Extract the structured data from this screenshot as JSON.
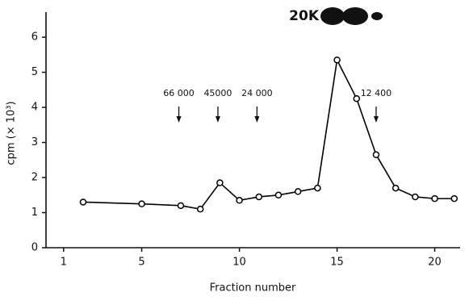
{
  "chart_data": {
    "type": "line",
    "gel_label": "20K",
    "x_label": "Fraction number",
    "y_label": "cpm (× 10³)",
    "x": [
      2,
      5,
      7,
      8,
      9,
      10,
      11,
      12,
      13,
      14,
      15,
      16,
      17,
      18,
      19,
      20,
      21
    ],
    "values": [
      1.3,
      1.25,
      1.2,
      1.1,
      1.85,
      1.35,
      1.45,
      1.5,
      1.6,
      1.7,
      5.35,
      4.25,
      2.65,
      1.7,
      1.45,
      1.4,
      1.4
    ],
    "color": "#000000",
    "xlim": [
      0.1,
      21.3
    ],
    "xticks": [
      1,
      5,
      10,
      15,
      20
    ],
    "ylim": [
      0,
      6.6
    ],
    "yticks": [
      0,
      1,
      2,
      3,
      4,
      5,
      6
    ],
    "annotations": [
      {
        "text": "66 000",
        "x": 6.9
      },
      {
        "text": "45000",
        "x": 8.9
      },
      {
        "text": "24 000",
        "x": 10.9
      },
      {
        "text": "12 400",
        "x": 17
      }
    ]
  }
}
